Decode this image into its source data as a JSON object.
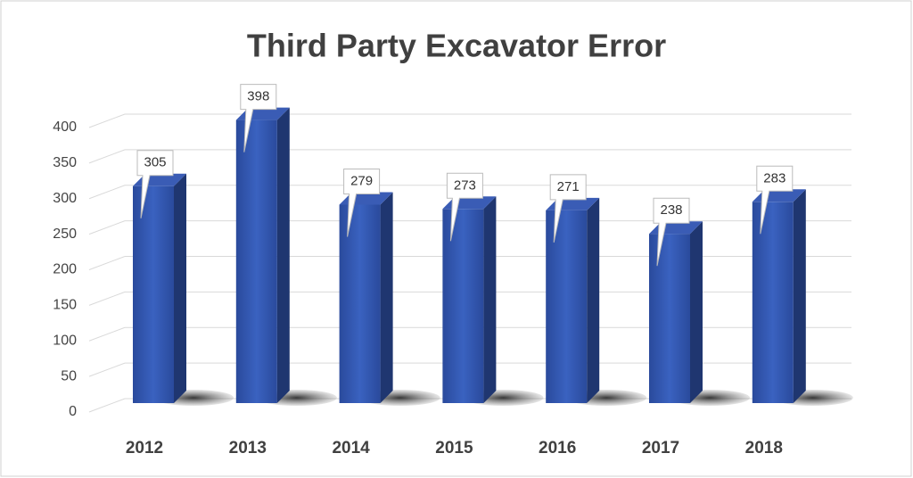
{
  "chart_data": {
    "type": "bar",
    "title": "Third Party Excavator Error",
    "categories": [
      "2012",
      "2013",
      "2014",
      "2015",
      "2016",
      "2017",
      "2018"
    ],
    "values": [
      305,
      398,
      279,
      273,
      271,
      238,
      283
    ],
    "color": "#2e4fa3",
    "ylim": [
      0,
      400
    ],
    "yticks": [
      0,
      50,
      100,
      150,
      200,
      250,
      300,
      350,
      400
    ],
    "grid": true
  }
}
